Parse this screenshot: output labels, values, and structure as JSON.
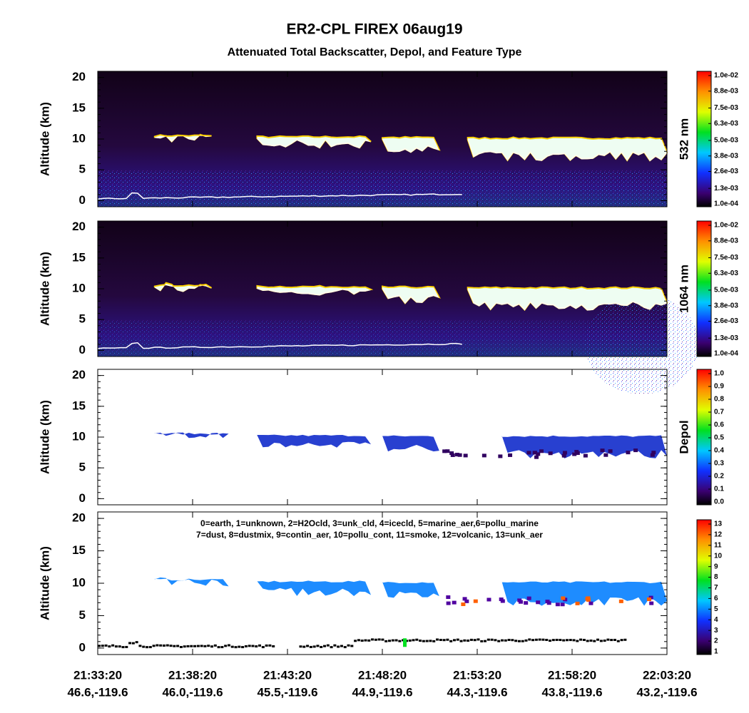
{
  "title": "ER2-CPL FIREX 06aug19",
  "subtitle": "Attenuated Total Backscatter, Depol, and Feature Type",
  "xticks": [
    {
      "time": "21:33:20",
      "location": "46.6,-119.6"
    },
    {
      "time": "21:38:20",
      "location": "46.0,-119.6"
    },
    {
      "time": "21:43:20",
      "location": "45.5,-119.6"
    },
    {
      "time": "21:48:20",
      "location": "44.9,-119.6"
    },
    {
      "time": "21:53:20",
      "location": "44.3,-119.6"
    },
    {
      "time": "21:58:20",
      "location": "43.8,-119.6"
    },
    {
      "time": "22:03:20",
      "location": "43.2,-119.6"
    }
  ],
  "chart_data": [
    {
      "type": "curtain",
      "y_label": "Altitude (km)",
      "colorbar_label": "532 nm",
      "ylim": [
        -1,
        21
      ],
      "yticks": [
        0,
        5,
        10,
        15,
        20
      ],
      "colorbar_lim": [
        0.0001,
        0.01
      ],
      "colorbar_ticks": [
        {
          "value": 0.01,
          "label": "1.0e-02"
        },
        {
          "value": 0.0088,
          "label": "8.8e-03"
        },
        {
          "value": 0.0075,
          "label": "7.5e-03"
        },
        {
          "value": 0.0063,
          "label": "6.3e-03"
        },
        {
          "value": 0.005,
          "label": "5.0e-03"
        },
        {
          "value": 0.0038,
          "label": "3.8e-03"
        },
        {
          "value": 0.0026,
          "label": "2.6e-03"
        },
        {
          "value": 0.0013,
          "label": "1.3e-03"
        },
        {
          "value": 0.0001,
          "label": "1.0e-04"
        }
      ]
    },
    {
      "type": "curtain",
      "y_label": "Altitude (km)",
      "colorbar_label": "1064 nm",
      "ylim": [
        -1,
        21
      ],
      "yticks": [
        0,
        5,
        10,
        15,
        20
      ],
      "colorbar_lim": [
        0.0001,
        0.01
      ],
      "colorbar_ticks": [
        {
          "value": 0.01,
          "label": "1.0e-02"
        },
        {
          "value": 0.0088,
          "label": "8.8e-03"
        },
        {
          "value": 0.0075,
          "label": "7.5e-03"
        },
        {
          "value": 0.0063,
          "label": "6.3e-03"
        },
        {
          "value": 0.005,
          "label": "5.0e-03"
        },
        {
          "value": 0.0038,
          "label": "3.8e-03"
        },
        {
          "value": 0.0026,
          "label": "2.6e-03"
        },
        {
          "value": 0.0013,
          "label": "1.3e-03"
        },
        {
          "value": 0.0001,
          "label": "1.0e-04"
        }
      ]
    },
    {
      "type": "depol",
      "y_label": "Altitude (km)",
      "colorbar_label": "Depol",
      "ylim": [
        -1,
        21
      ],
      "yticks": [
        0,
        5,
        10,
        15,
        20
      ],
      "colorbar_lim": [
        0,
        1
      ],
      "colorbar_ticks": [
        {
          "value": 1,
          "label": "1.0"
        },
        0.9,
        0.8,
        0.7,
        0.6,
        0.5,
        0.4,
        0.3,
        0.2,
        0.1,
        {
          "value": 0,
          "label": "0.0"
        }
      ]
    },
    {
      "type": "feature",
      "y_label": "Altitude (km)",
      "ylim": [
        -1,
        21
      ],
      "yticks": [
        0,
        5,
        10,
        15,
        20
      ],
      "colorbar_lim": [
        1,
        13
      ],
      "colorbar_ticks": [
        13,
        12,
        11,
        10,
        9,
        8,
        7,
        6,
        5,
        4,
        3,
        2,
        1
      ],
      "legend_lines": [
        "0=earth, 1=unknown, 2=H2Ocld, 3=unk_cld, 4=icecld, 5=marine_aer,6=pollu_marine",
        "7=dust, 8=dustmix, 9=contin_aer, 10=pollu_cont, 11=smoke, 12=volcanic, 13=unk_aer"
      ]
    }
  ]
}
